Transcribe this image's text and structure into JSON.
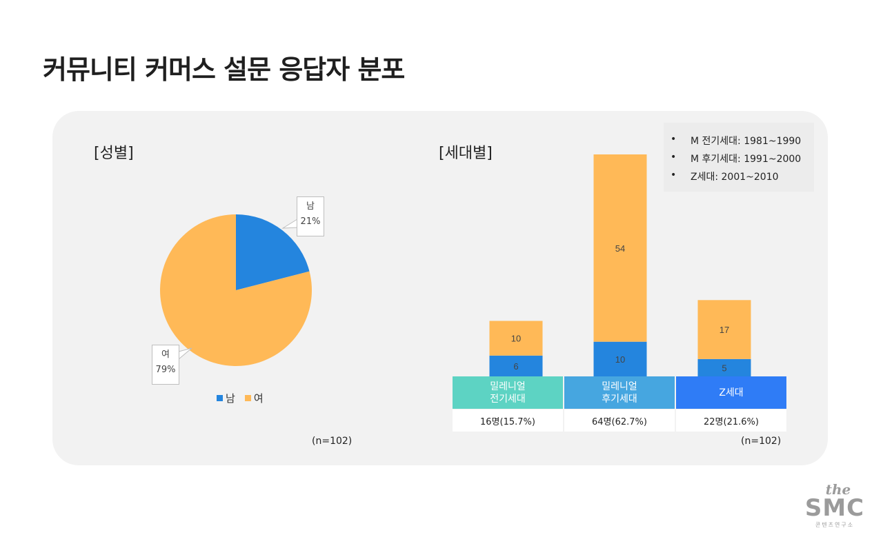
{
  "title": "커뮤니티 커머스 설문 응답자 분포",
  "gender": {
    "label": "[성별]",
    "n_label": "(n=102)"
  },
  "generation": {
    "label": "[세대별]",
    "n_label": "(n=102)",
    "notes": [
      {
        "bullet": "•",
        "text": "M 전기세대: 1981~1990"
      },
      {
        "bullet": "•",
        "text": "M 후기세대: 1991~2000"
      },
      {
        "bullet": "•",
        "text": "Z세대: 2001~2010"
      }
    ],
    "categories": [
      {
        "label": "밀레니얼\n전기세대",
        "color": "#5dd3c3",
        "count": "16명(15.7%)"
      },
      {
        "label": "밀레니얼\n후기세대",
        "color": "#46a6e0",
        "count": "64명(62.7%)"
      },
      {
        "label": "Z세대",
        "color": "#2f7cf6",
        "count": "22명(21.6%)"
      }
    ]
  },
  "chart_data": [
    {
      "type": "pie",
      "labels": [
        "남",
        "여"
      ],
      "values": [
        21,
        79
      ],
      "value_labels": [
        "21%",
        "79%"
      ],
      "colors": [
        "#2485de",
        "#ffb957"
      ],
      "legend": "bottom",
      "title": ""
    },
    {
      "type": "bar",
      "stacked": true,
      "categories": [
        "밀레니얼 전기세대",
        "밀레니얼 후기세대",
        "Z세대"
      ],
      "series": [
        {
          "values": [
            6,
            10,
            5
          ],
          "color": "#2485de"
        },
        {
          "values": [
            10,
            54,
            17
          ],
          "color": "#ffb957"
        }
      ],
      "ylim": [
        0,
        64
      ],
      "title": ""
    }
  ],
  "logo": {
    "the": "the",
    "smc": "SMC",
    "sub": "콘텐츠연구소"
  }
}
